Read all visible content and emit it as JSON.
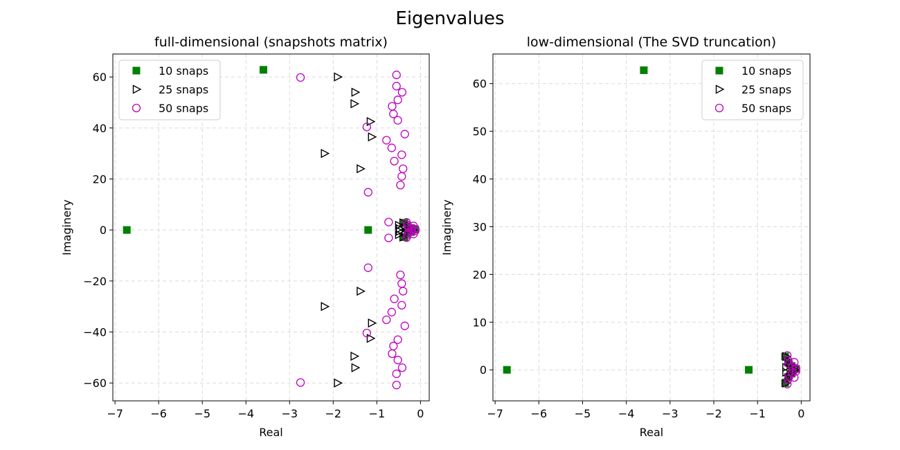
{
  "figure_title": "Eigenvalues",
  "chart_data": [
    {
      "type": "scatter",
      "title": "full-dimensional (snapshots matrix)",
      "xlabel": "Real",
      "ylabel": "Imaginery",
      "xlim": [
        -7.05,
        0.2
      ],
      "ylim": [
        -67,
        69
      ],
      "xticks": [
        -7,
        -6,
        -5,
        -4,
        -3,
        -2,
        -1,
        0
      ],
      "yticks": [
        -60,
        -40,
        -20,
        0,
        20,
        40,
        60
      ],
      "grid": true,
      "legend_position": "top-left",
      "series": [
        {
          "name": "10 snaps",
          "marker": "square",
          "color": "#008000",
          "points": [
            [
              -6.73,
              0
            ],
            [
              -3.6,
              62.8
            ],
            [
              -1.2,
              0
            ],
            [
              -0.37,
              2.8
            ],
            [
              -0.37,
              -2.8
            ],
            [
              -0.3,
              1.5
            ],
            [
              -0.3,
              -1.5
            ],
            [
              -0.22,
              0.8
            ],
            [
              -0.22,
              -0.8
            ],
            [
              -0.12,
              0.2
            ]
          ]
        },
        {
          "name": "25 snaps",
          "marker": "triangle-right",
          "color": "#000000",
          "points": [
            [
              -1.9,
              60
            ],
            [
              -1.9,
              -60
            ],
            [
              -1.5,
              54
            ],
            [
              -1.5,
              -54
            ],
            [
              -1.52,
              49.5
            ],
            [
              -1.52,
              -49.5
            ],
            [
              -1.15,
              42.5
            ],
            [
              -1.15,
              -42.5
            ],
            [
              -1.12,
              36.5
            ],
            [
              -1.12,
              -36.5
            ],
            [
              -2.2,
              30
            ],
            [
              -2.2,
              -30
            ],
            [
              -1.38,
              24
            ],
            [
              -1.38,
              -24
            ],
            [
              -0.5,
              1.8
            ],
            [
              -0.5,
              -1.8
            ],
            [
              -0.48,
              0.5
            ],
            [
              -0.48,
              -0.5
            ],
            [
              -0.4,
              2.8
            ],
            [
              -0.4,
              -2.8
            ],
            [
              -0.35,
              1.2
            ],
            [
              -0.35,
              -1.2
            ],
            [
              -0.25,
              0.5
            ],
            [
              -0.25,
              -0.5
            ],
            [
              -0.18,
              0
            ]
          ]
        },
        {
          "name": "50 snaps",
          "marker": "circle",
          "color": "#BF00BF",
          "points": [
            [
              -2.75,
              59.8
            ],
            [
              -2.75,
              -59.8
            ],
            [
              -0.55,
              60.8
            ],
            [
              -0.55,
              -60.8
            ],
            [
              -0.55,
              56.4
            ],
            [
              -0.55,
              -56.4
            ],
            [
              -0.42,
              54
            ],
            [
              -0.42,
              -54
            ],
            [
              -0.52,
              51
            ],
            [
              -0.52,
              -51
            ],
            [
              -0.65,
              48.5
            ],
            [
              -0.65,
              -48.5
            ],
            [
              -0.62,
              45.5
            ],
            [
              -0.62,
              -45.5
            ],
            [
              -0.52,
              43
            ],
            [
              -0.52,
              -43
            ],
            [
              -1.23,
              40.4
            ],
            [
              -1.23,
              -40.4
            ],
            [
              -0.36,
              37.6
            ],
            [
              -0.36,
              -37.6
            ],
            [
              -0.78,
              35.2
            ],
            [
              -0.78,
              -35.2
            ],
            [
              -0.66,
              32.2
            ],
            [
              -0.66,
              -32.2
            ],
            [
              -0.43,
              29.5
            ],
            [
              -0.43,
              -29.5
            ],
            [
              -0.6,
              27
            ],
            [
              -0.6,
              -27
            ],
            [
              -0.4,
              24
            ],
            [
              -0.4,
              -24
            ],
            [
              -0.43,
              21
            ],
            [
              -0.43,
              -21
            ],
            [
              -0.46,
              17.6
            ],
            [
              -0.46,
              -17.6
            ],
            [
              -1.2,
              14.8
            ],
            [
              -1.2,
              -14.8
            ],
            [
              -0.73,
              3.1
            ],
            [
              -0.73,
              -3.1
            ],
            [
              -0.32,
              3
            ],
            [
              -0.32,
              -3
            ],
            [
              -0.3,
              2
            ],
            [
              -0.3,
              -2
            ],
            [
              -0.28,
              1.2
            ],
            [
              -0.28,
              -1.2
            ],
            [
              -0.2,
              0.6
            ],
            [
              -0.2,
              -0.6
            ],
            [
              -0.16,
              1.6
            ],
            [
              -0.16,
              -1.6
            ],
            [
              -0.12,
              0.3
            ],
            [
              -0.12,
              -0.3
            ]
          ]
        }
      ]
    },
    {
      "type": "scatter",
      "title": "low-dimensional (The SVD truncation)",
      "xlabel": "Real",
      "ylabel": "Imaginery",
      "xlim": [
        -7.05,
        0.2
      ],
      "ylim": [
        -6.5,
        66.2
      ],
      "xticks": [
        -7,
        -6,
        -5,
        -4,
        -3,
        -2,
        -1,
        0
      ],
      "yticks": [
        0,
        10,
        20,
        30,
        40,
        50,
        60
      ],
      "grid": true,
      "legend_position": "top-right",
      "series": [
        {
          "name": "10 snaps",
          "marker": "square",
          "color": "#008000",
          "points": [
            [
              -6.73,
              0
            ],
            [
              -3.6,
              62.8
            ],
            [
              -1.2,
              0
            ],
            [
              -0.37,
              2.8
            ],
            [
              -0.37,
              -2.8
            ],
            [
              -0.3,
              1.5
            ],
            [
              -0.3,
              -1.5
            ],
            [
              -0.22,
              0.8
            ],
            [
              -0.22,
              -0.8
            ],
            [
              -0.12,
              0.2
            ]
          ]
        },
        {
          "name": "25 snaps",
          "marker": "triangle-right",
          "color": "#000000",
          "points": [
            [
              -0.35,
              2.8
            ],
            [
              -0.35,
              -2.8
            ],
            [
              -0.35,
              0.5
            ],
            [
              -0.35,
              -0.5
            ],
            [
              -0.3,
              1.8
            ],
            [
              -0.3,
              -1.8
            ],
            [
              -0.25,
              1.2
            ],
            [
              -0.25,
              -1.2
            ],
            [
              -0.18,
              0.5
            ],
            [
              -0.18,
              -0.5
            ],
            [
              -0.15,
              0
            ]
          ]
        },
        {
          "name": "50 snaps",
          "marker": "circle",
          "color": "#BF00BF",
          "points": [
            [
              -0.32,
              3
            ],
            [
              -0.32,
              -3
            ],
            [
              -0.3,
              2
            ],
            [
              -0.3,
              -2
            ],
            [
              -0.28,
              1.2
            ],
            [
              -0.28,
              -1.2
            ],
            [
              -0.2,
              0.6
            ],
            [
              -0.2,
              -0.6
            ],
            [
              -0.16,
              1.6
            ],
            [
              -0.16,
              -1.6
            ],
            [
              -0.12,
              0.3
            ],
            [
              -0.12,
              -0.3
            ]
          ]
        }
      ]
    }
  ]
}
